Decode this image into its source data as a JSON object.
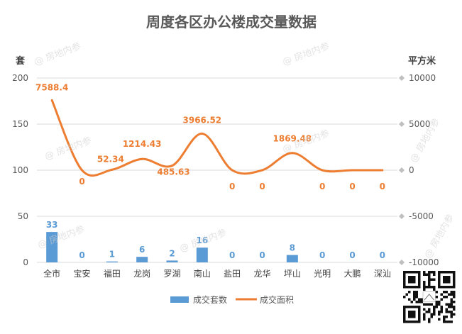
{
  "chart_data": {
    "type": "bar",
    "title": "周度各区办公楼成交量数据",
    "categories": [
      "全市",
      "宝安",
      "福田",
      "龙岗",
      "罗湖",
      "南山",
      "盐田",
      "龙华",
      "坪山",
      "光明",
      "大鹏",
      "深汕"
    ],
    "left_axis": {
      "label": "套",
      "ylim": [
        0,
        200
      ],
      "ticks": [
        0,
        50,
        100,
        150,
        200
      ],
      "tick_labels": [
        "0",
        "50",
        "100",
        "150",
        "200"
      ]
    },
    "right_axis": {
      "label": "平方米",
      "ylim": [
        -10000,
        10000
      ],
      "ticks": [
        -10000,
        -5000,
        0,
        5000,
        10000
      ],
      "tick_labels": [
        "-10000",
        "-5000",
        "0",
        "5000",
        "10000"
      ]
    },
    "series": [
      {
        "name": "成交套数",
        "type": "bar",
        "axis": "left",
        "values": [
          33,
          0,
          1,
          6,
          2,
          16,
          0,
          0,
          8,
          0,
          0,
          0
        ],
        "labels": [
          "33",
          "0",
          "1",
          "6",
          "2",
          "16",
          "0",
          "0",
          "8",
          "0",
          "0",
          "0"
        ]
      },
      {
        "name": "成交面积",
        "type": "line",
        "axis": "right",
        "values": [
          7588.4,
          0,
          52.34,
          1214.43,
          485.63,
          3966.52,
          0,
          0,
          1869.48,
          0,
          0,
          0
        ],
        "labels": [
          "7588.4",
          "0",
          "52.34",
          "1214.43",
          "485.63",
          "3966.52",
          "0",
          "0",
          "1869.48",
          "0",
          "0",
          "0"
        ]
      }
    ],
    "legend_position": "bottom",
    "grid": true,
    "colors": {
      "bar": "#5b9bd5",
      "line": "#ed7d31",
      "grid": "#d9d9d9",
      "text": "#595959",
      "title": "#595959"
    }
  },
  "watermark": {
    "text": "@ 房地内参"
  }
}
